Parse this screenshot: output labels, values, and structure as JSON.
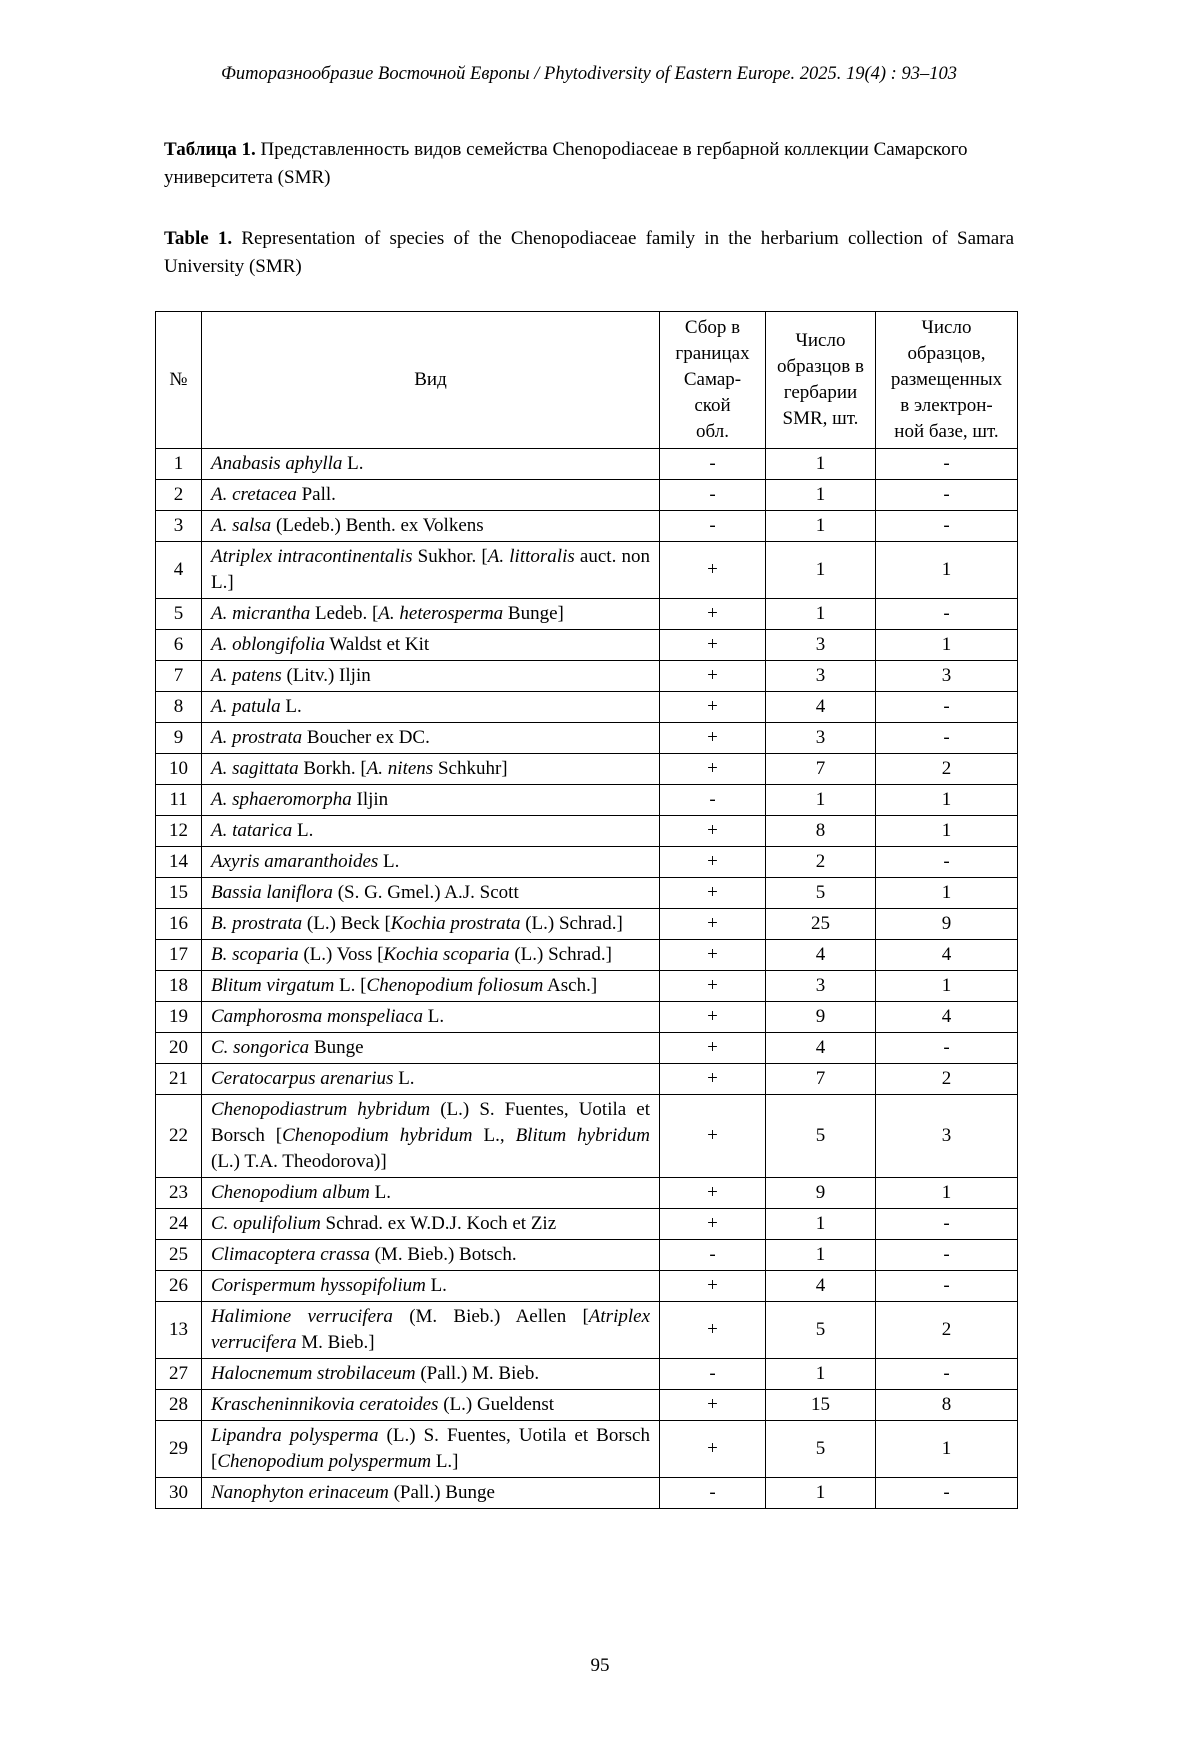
{
  "header": {
    "running_head": "Фиторазнообразие Восточной Европы / Phytodiversity of Eastern Europe. 2025. 19(4) : 93–103"
  },
  "captions": {
    "ru_label": "Таблица 1.",
    "ru_text": " Представленность видов семейства Chenopodiaceae в гербарной коллекции Самарского университета (SMR)",
    "en_label": "Table 1.",
    "en_text": " Representation of species of the Chenopodiaceae family in the herbarium collection of Samara University (SMR)"
  },
  "table": {
    "columns": {
      "num": "№",
      "species": "Вид",
      "collection": "Сбор в\nграницах\nСамар-\nской\nобл.",
      "smr_count": "Число\nобразцов в\nгербарии\nSMR, шт.",
      "db_count": "Число\nобразцов,\nразмещенных\nв электрон-\nной базе, шт."
    },
    "rows": [
      {
        "n": "1",
        "name": [
          [
            "Anabasis aphylla",
            1
          ],
          [
            " L.",
            0
          ]
        ],
        "col": "-",
        "smr": "1",
        "db": "-"
      },
      {
        "n": "2",
        "name": [
          [
            "A. cretacea",
            1
          ],
          [
            " Pall.",
            0
          ]
        ],
        "col": "-",
        "smr": "1",
        "db": "-"
      },
      {
        "n": "3",
        "name": [
          [
            "A. salsa",
            1
          ],
          [
            " (Ledeb.) Benth. ex Volkens",
            0
          ]
        ],
        "col": "-",
        "smr": "1",
        "db": "-"
      },
      {
        "n": "4",
        "name": [
          [
            "Atriplex intracontinentalis",
            1
          ],
          [
            " Sukhor. [",
            0
          ],
          [
            "A. littoralis",
            1
          ],
          [
            " auct. non L.]",
            0
          ]
        ],
        "col": "+",
        "smr": "1",
        "db": "1"
      },
      {
        "n": "5",
        "name": [
          [
            "A. micrantha",
            1
          ],
          [
            " Ledeb. [",
            0
          ],
          [
            "A. heterosperma",
            1
          ],
          [
            " Bunge]",
            0
          ]
        ],
        "col": "+",
        "smr": "1",
        "db": "-"
      },
      {
        "n": "6",
        "name": [
          [
            "A. oblongifolia",
            1
          ],
          [
            " Waldst et Kit",
            0
          ]
        ],
        "col": "+",
        "smr": "3",
        "db": "1"
      },
      {
        "n": "7",
        "name": [
          [
            "A. patens",
            1
          ],
          [
            " (Litv.) Iljin",
            0
          ]
        ],
        "col": "+",
        "smr": "3",
        "db": "3"
      },
      {
        "n": "8",
        "name": [
          [
            "A. patula",
            1
          ],
          [
            " L.",
            0
          ]
        ],
        "col": "+",
        "smr": "4",
        "db": "-"
      },
      {
        "n": "9",
        "name": [
          [
            "A. prostrata",
            1
          ],
          [
            " Boucher ex DC.",
            0
          ]
        ],
        "col": "+",
        "smr": "3",
        "db": "-"
      },
      {
        "n": "10",
        "name": [
          [
            "A. sagittata",
            1
          ],
          [
            " Borkh. [",
            0
          ],
          [
            "A. nitens",
            1
          ],
          [
            " Schkuhr]",
            0
          ]
        ],
        "col": "+",
        "smr": "7",
        "db": "2"
      },
      {
        "n": "11",
        "name": [
          [
            "A. sphaeromorpha",
            1
          ],
          [
            " Iljin",
            0
          ]
        ],
        "col": "-",
        "smr": "1",
        "db": "1"
      },
      {
        "n": "12",
        "name": [
          [
            "A. tatarica",
            1
          ],
          [
            " L.",
            0
          ]
        ],
        "col": "+",
        "smr": "8",
        "db": "1"
      },
      {
        "n": "14",
        "name": [
          [
            "Axyris amaranthoides",
            1
          ],
          [
            " L.",
            0
          ]
        ],
        "col": "+",
        "smr": "2",
        "db": "-"
      },
      {
        "n": "15",
        "name": [
          [
            "Bassia laniflora",
            1
          ],
          [
            " (S. G. Gmel.) A.J. Scott",
            0
          ]
        ],
        "col": "+",
        "smr": "5",
        "db": "1"
      },
      {
        "n": "16",
        "name": [
          [
            "B. prostrata",
            1
          ],
          [
            " (L.) Beck [",
            0
          ],
          [
            "Kochia prostrata",
            1
          ],
          [
            " (L.) Schrad.]",
            0
          ]
        ],
        "col": "+",
        "smr": "25",
        "db": "9"
      },
      {
        "n": "17",
        "name": [
          [
            "B. scoparia",
            1
          ],
          [
            " (L.) Voss [",
            0
          ],
          [
            "Kochia scoparia",
            1
          ],
          [
            " (L.) Schrad.]",
            0
          ]
        ],
        "col": "+",
        "smr": "4",
        "db": "4"
      },
      {
        "n": "18",
        "name": [
          [
            "Blitum virgatum",
            1
          ],
          [
            " L. [",
            0
          ],
          [
            "Chenopodium foliosum",
            1
          ],
          [
            " Asch.]",
            0
          ]
        ],
        "col": "+",
        "smr": "3",
        "db": "1"
      },
      {
        "n": "19",
        "name": [
          [
            "Camphorosma monspeliaca",
            1
          ],
          [
            " L.",
            0
          ]
        ],
        "col": "+",
        "smr": "9",
        "db": "4"
      },
      {
        "n": "20",
        "name": [
          [
            "C. songorica",
            1
          ],
          [
            " Bunge",
            0
          ]
        ],
        "col": "+",
        "smr": "4",
        "db": "-"
      },
      {
        "n": "21",
        "name": [
          [
            "Ceratocarpus arenarius",
            1
          ],
          [
            " L.",
            0
          ]
        ],
        "col": "+",
        "smr": "7",
        "db": "2"
      },
      {
        "n": "22",
        "name": [
          [
            "Chenopodiastrum hybridum",
            1
          ],
          [
            " (L.) S. Fuentes, Uotila et Borsch [",
            0
          ],
          [
            "Chenopodium hybridum",
            1
          ],
          [
            " L., ",
            0
          ],
          [
            "Blitum hybridum",
            1
          ],
          [
            " (L.) T.A. Theodorova)]",
            0
          ]
        ],
        "col": "+",
        "smr": "5",
        "db": "3"
      },
      {
        "n": "23",
        "name": [
          [
            "Chenopodium album",
            1
          ],
          [
            " L.",
            0
          ]
        ],
        "col": "+",
        "smr": "9",
        "db": "1"
      },
      {
        "n": "24",
        "name": [
          [
            "C. opulifolium",
            1
          ],
          [
            " Schrad. ex W.D.J. Koch et Ziz",
            0
          ]
        ],
        "col": "+",
        "smr": "1",
        "db": "-"
      },
      {
        "n": "25",
        "name": [
          [
            "Climacoptera crassa",
            1
          ],
          [
            " (M. Bieb.) Botsch.",
            0
          ]
        ],
        "col": "-",
        "smr": "1",
        "db": "-"
      },
      {
        "n": "26",
        "name": [
          [
            "Corispermum hyssopifolium",
            1
          ],
          [
            " L.",
            0
          ]
        ],
        "col": "+",
        "smr": "4",
        "db": "-"
      },
      {
        "n": "13",
        "name": [
          [
            "Halimione verrucifera",
            1
          ],
          [
            " (M. Bieb.) Aellen [",
            0
          ],
          [
            "Atriplex verrucifera",
            1
          ],
          [
            " M. Bieb.]",
            0
          ]
        ],
        "col": "+",
        "smr": "5",
        "db": "2"
      },
      {
        "n": "27",
        "name": [
          [
            "Halocnemum strobilaceum",
            1
          ],
          [
            " (Pall.) M. Bieb.",
            0
          ]
        ],
        "col": "-",
        "smr": "1",
        "db": "-"
      },
      {
        "n": "28",
        "name": [
          [
            "Krascheninnikovia ceratoides",
            1
          ],
          [
            " (L.) Gueldenst",
            0
          ]
        ],
        "col": "+",
        "smr": "15",
        "db": "8"
      },
      {
        "n": "29",
        "name": [
          [
            "Lipandra polysperma",
            1
          ],
          [
            " (L.) S. Fuentes, Uotila et Borsch [",
            0
          ],
          [
            "Chenopodium polyspermum",
            1
          ],
          [
            " L.]",
            0
          ]
        ],
        "col": "+",
        "smr": "5",
        "db": "1"
      },
      {
        "n": "30",
        "name": [
          [
            "Nanophyton erinaceum",
            1
          ],
          [
            " (Pall.) Bunge",
            0
          ]
        ],
        "col": "-",
        "smr": "1",
        "db": "-"
      }
    ]
  },
  "footer": {
    "page_number": "95"
  }
}
